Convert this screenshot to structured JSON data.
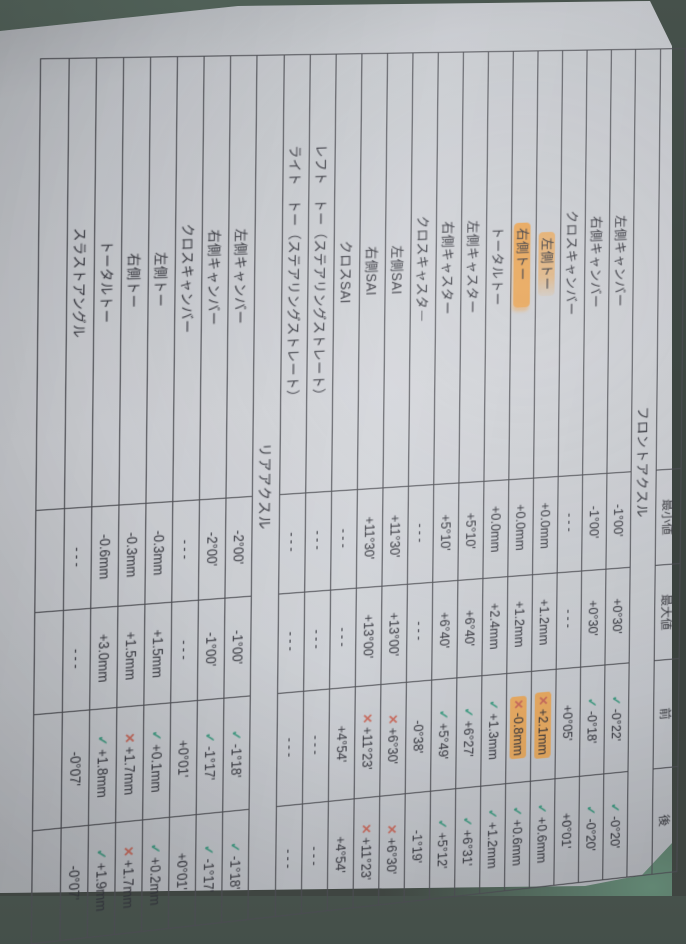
{
  "photo": {
    "description": "Photo of a printed wheel alignment result sheet lying rotated ~90 degrees on a dark teal-grey surface",
    "surface_color": "#414b46",
    "surface_teal_corner": "#68927c",
    "paper_color": "#cdd0d5",
    "ink_color": "#303139",
    "grid_line_color": "#4a4b51",
    "pass_color": "#3a9b80",
    "fail_color": "#c9685a",
    "highlighter_color": "#f1a142"
  },
  "table": {
    "headers": {
      "name": "",
      "min": "最小値",
      "max": "最大値",
      "before": "前",
      "after": "後"
    },
    "marks": {
      "pass": "✓",
      "fail": "✕",
      "none": ""
    },
    "sections": [
      {
        "title": "フロントアクスル",
        "rows": [
          {
            "label": "左側キャンバー",
            "min": "-1°00'",
            "max": "+0°30'",
            "before": {
              "mark": "pass",
              "value": "-0°22'"
            },
            "after": {
              "mark": "pass",
              "value": "-0°20'"
            }
          },
          {
            "label": "右側キャンバー",
            "min": "-1°00'",
            "max": "+0°30'",
            "before": {
              "mark": "pass",
              "value": "-0°18'"
            },
            "after": {
              "mark": "pass",
              "value": "-0°20'"
            }
          },
          {
            "label": "クロスキャンバー",
            "min": "---",
            "max": "---",
            "before": {
              "mark": "none",
              "value": "+0°05'"
            },
            "after": {
              "mark": "none",
              "value": "+0°01'"
            }
          },
          {
            "label": "左側トー",
            "label_hl": "partial",
            "min": "+0.0mm",
            "max": "+1.2mm",
            "before": {
              "mark": "fail",
              "value": "+2.1mm",
              "hl": true
            },
            "after": {
              "mark": "pass",
              "value": "+0.6mm"
            }
          },
          {
            "label": "右側トー",
            "label_hl": "full",
            "min": "+0.0mm",
            "max": "+1.2mm",
            "before": {
              "mark": "fail",
              "value": "-0.8mm",
              "hl": true
            },
            "after": {
              "mark": "pass",
              "value": "+0.6mm"
            }
          },
          {
            "label": "トータルトー",
            "min": "+0.0mm",
            "max": "+2.4mm",
            "before": {
              "mark": "pass",
              "value": "+1.3mm"
            },
            "after": {
              "mark": "pass",
              "value": "+1.2mm"
            }
          },
          {
            "label": "左側キャスター",
            "min": "+5°10'",
            "max": "+6°40'",
            "before": {
              "mark": "pass",
              "value": "+6°27'"
            },
            "after": {
              "mark": "pass",
              "value": "+6°31'"
            }
          },
          {
            "label": "右側キャスター",
            "min": "+5°10'",
            "max": "+6°40'",
            "before": {
              "mark": "pass",
              "value": "+5°49'"
            },
            "after": {
              "mark": "pass",
              "value": "+5°12'"
            }
          },
          {
            "label": "クロスキャスター",
            "min": "---",
            "max": "---",
            "before": {
              "mark": "none",
              "value": "-0°38'"
            },
            "after": {
              "mark": "none",
              "value": "-1°19'"
            }
          },
          {
            "label": "左側SAI",
            "min": "+11°30'",
            "max": "+13°00'",
            "before": {
              "mark": "fail",
              "value": "+6°30'"
            },
            "after": {
              "mark": "fail",
              "value": "+6°30'"
            }
          },
          {
            "label": "右側SAI",
            "min": "+11°30'",
            "max": "+13°00'",
            "before": {
              "mark": "fail",
              "value": "+11°23'"
            },
            "after": {
              "mark": "fail",
              "value": "+11°23'"
            }
          },
          {
            "label": "クロスSAI",
            "min": "---",
            "max": "---",
            "before": {
              "mark": "none",
              "value": "+4°54'"
            },
            "after": {
              "mark": "none",
              "value": "+4°54'"
            }
          },
          {
            "label": "レフト　トー（ステアリングストレート）",
            "min": "---",
            "max": "---",
            "before": {
              "mark": "none",
              "value": "---"
            },
            "after": {
              "mark": "none",
              "value": "---"
            }
          },
          {
            "label": "ライト　トー（ステアリングストレート）",
            "min": "---",
            "max": "---",
            "before": {
              "mark": "none",
              "value": "---"
            },
            "after": {
              "mark": "none",
              "value": "---"
            }
          }
        ]
      },
      {
        "title": "リアアクスル",
        "rows": [
          {
            "label": "左側キャンバー",
            "min": "-2°00'",
            "max": "-1°00'",
            "before": {
              "mark": "pass",
              "value": "-1°18'"
            },
            "after": {
              "mark": "pass",
              "value": "-1°18'"
            }
          },
          {
            "label": "右側キャンバー",
            "min": "-2°00'",
            "max": "-1°00'",
            "before": {
              "mark": "pass",
              "value": "-1°17'"
            },
            "after": {
              "mark": "pass",
              "value": "-1°17'"
            }
          },
          {
            "label": "クロスキャンバー",
            "min": "---",
            "max": "---",
            "before": {
              "mark": "none",
              "value": "+0°01'"
            },
            "after": {
              "mark": "none",
              "value": "+0°01'"
            }
          },
          {
            "label": "左側トー",
            "min": "-0.3mm",
            "max": "+1.5mm",
            "before": {
              "mark": "pass",
              "value": "+0.1mm"
            },
            "after": {
              "mark": "pass",
              "value": "+0.2mm"
            }
          },
          {
            "label": "右側トー",
            "min": "-0.3mm",
            "max": "+1.5mm",
            "before": {
              "mark": "fail",
              "value": "+1.7mm"
            },
            "after": {
              "mark": "fail",
              "value": "+1.7mm"
            }
          },
          {
            "label": "トータルトー",
            "min": "-0.6mm",
            "max": "+3.0mm",
            "before": {
              "mark": "pass",
              "value": "+1.8mm"
            },
            "after": {
              "mark": "pass",
              "value": "+1.9mm"
            }
          },
          {
            "label": "スラストアングル",
            "min": "---",
            "max": "---",
            "before": {
              "mark": "none",
              "value": "-0°07'"
            },
            "after": {
              "mark": "none",
              "value": "-0°07'"
            }
          }
        ]
      }
    ]
  }
}
